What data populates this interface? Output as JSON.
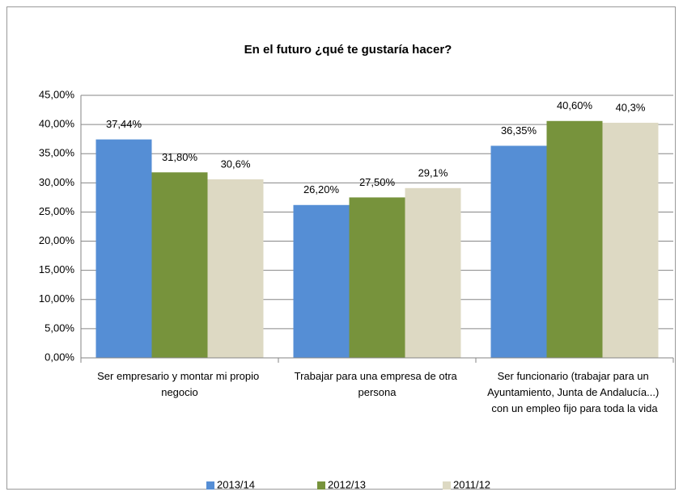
{
  "chart_data": {
    "type": "bar",
    "title": "En el futuro ¿qué te gustaría hacer?",
    "categories": [
      "Ser empresario y montar mi propio negocio",
      "Trabajar para una empresa de otra persona",
      "Ser funcionario (trabajar para un Ayuntamiento, Junta de Andalucía...) con un empleo fijo para toda la vida"
    ],
    "series": [
      {
        "name": "2013/14",
        "color": "#558ed5",
        "values": [
          37.44,
          26.2,
          36.35
        ],
        "value_labels": [
          "37,44%",
          "26,20%",
          "36,35%"
        ]
      },
      {
        "name": "2012/13",
        "color": "#77933c",
        "values": [
          31.8,
          27.5,
          40.6
        ],
        "value_labels": [
          "31,80%",
          "27,50%",
          "40,60%"
        ]
      },
      {
        "name": "2011/12",
        "color": "#ddd9c3",
        "values": [
          30.6,
          29.1,
          40.3
        ],
        "value_labels": [
          "30,6%",
          "29,1%",
          "40,3%"
        ]
      }
    ],
    "ylim": [
      0,
      45
    ],
    "yticks": [
      {
        "value": 0,
        "label": "0,00%"
      },
      {
        "value": 5,
        "label": "5,00%"
      },
      {
        "value": 10,
        "label": "10,00%"
      },
      {
        "value": 15,
        "label": "15,00%"
      },
      {
        "value": 20,
        "label": "20,00%"
      },
      {
        "value": 25,
        "label": "25,00%"
      },
      {
        "value": 30,
        "label": "30,00%"
      },
      {
        "value": 35,
        "label": "35,00%"
      },
      {
        "value": 40,
        "label": "40,00%"
      },
      {
        "value": 45,
        "label": "45,00%"
      }
    ],
    "grid": true,
    "legend": "bottom"
  }
}
